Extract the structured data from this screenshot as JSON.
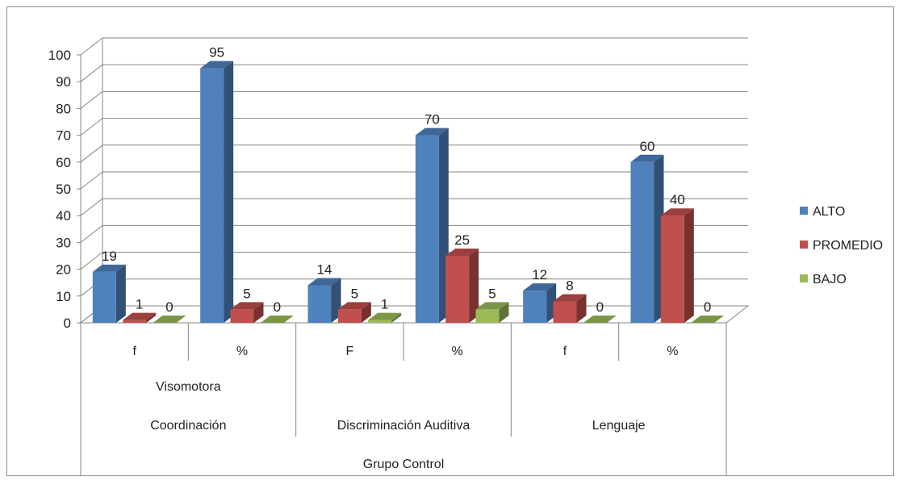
{
  "chart_data": {
    "type": "bar",
    "style": "3d-clustered-column",
    "categories": [
      "f",
      "%",
      "F",
      "%",
      "f",
      "%"
    ],
    "category_groups_level2": [
      {
        "label": "Coordinación",
        "span": 2,
        "sublabel": "Visomotora"
      },
      {
        "label": "Discriminación Auditiva",
        "span": 2
      },
      {
        "label": "Lenguaje",
        "span": 2
      }
    ],
    "category_group_level3": {
      "label": "Grupo Control",
      "span": 6
    },
    "series": [
      {
        "name": "ALTO",
        "color": "#4f81bd",
        "values": [
          19,
          95,
          14,
          70,
          12,
          60
        ]
      },
      {
        "name": "PROMEDIO",
        "color": "#c0504d",
        "values": [
          1,
          5,
          5,
          25,
          8,
          40
        ]
      },
      {
        "name": "BAJO",
        "color": "#9bbb59",
        "values": [
          0,
          0,
          1,
          5,
          0,
          0
        ]
      }
    ],
    "ylim": [
      0,
      100
    ],
    "yticks": [
      0,
      10,
      20,
      30,
      40,
      50,
      60,
      70,
      80,
      90,
      100
    ],
    "grid": true,
    "legend_position": "right",
    "title": "",
    "xlabel": "",
    "ylabel": ""
  }
}
